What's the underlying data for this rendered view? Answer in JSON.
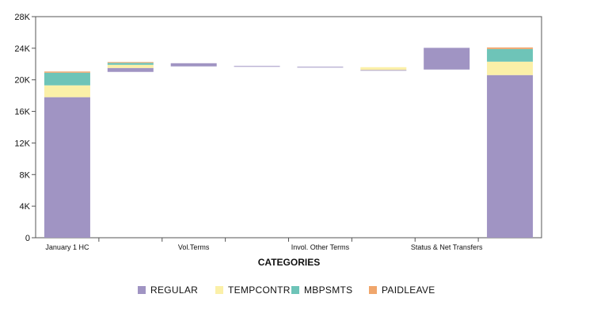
{
  "chart_data": {
    "type": "bar",
    "subtype": "stacked-waterfall",
    "title": "",
    "xlabel": "CATEGORIES",
    "ylabel": "",
    "ylim": [
      0,
      28000
    ],
    "y_ticks": [
      0,
      4000,
      8000,
      12000,
      16000,
      20000,
      24000,
      28000
    ],
    "y_tick_labels": [
      "0",
      "4K",
      "8K",
      "12K",
      "16K",
      "20K",
      "24K",
      "28K"
    ],
    "grid": false,
    "legend_position": "bottom",
    "categories": [
      "January 1 HC",
      "",
      "Vol.Terms",
      "",
      "Invol. Other Terms",
      "",
      "Status & Net Transfers",
      ""
    ],
    "series": [
      {
        "name": "REGULAR",
        "color": "#a094c3",
        "segments": [
          [
            0,
            17800
          ],
          [
            21000,
            21500
          ],
          [
            21700,
            22100
          ],
          [
            21650,
            21750
          ],
          [
            21550,
            21650
          ],
          [
            21150,
            21250
          ],
          [
            21300,
            24050
          ],
          [
            0,
            20600
          ]
        ]
      },
      {
        "name": "TEMPCONTR",
        "color": "#fbf0a8",
        "segments": [
          [
            17800,
            19300
          ],
          [
            21500,
            21900
          ],
          null,
          null,
          null,
          [
            21250,
            21600
          ],
          null,
          [
            20600,
            22300
          ]
        ]
      },
      {
        "name": "MBPSMTS",
        "color": "#6ec4b8",
        "segments": [
          [
            19300,
            20900
          ],
          [
            21900,
            22150
          ],
          null,
          null,
          null,
          null,
          null,
          [
            22300,
            23900
          ]
        ]
      },
      {
        "name": "PAIDLEAVE",
        "color": "#f0a66c",
        "segments": [
          [
            20900,
            21050
          ],
          [
            22150,
            22250
          ],
          null,
          null,
          null,
          null,
          null,
          [
            23900,
            24100
          ]
        ]
      }
    ]
  }
}
